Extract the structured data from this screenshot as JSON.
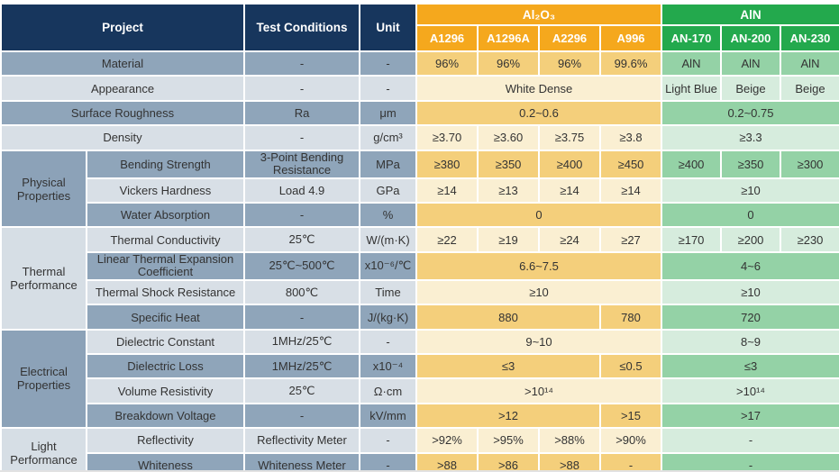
{
  "table": {
    "header": {
      "project": "Project",
      "test_conditions": "Test Conditions",
      "unit": "Unit",
      "groups": [
        {
          "label": "Al₂O₃",
          "columns": [
            "A1296",
            "A1296A",
            "A2296",
            "A996"
          ]
        },
        {
          "label": "AlN",
          "columns": [
            "AN-170",
            "AN-200",
            "AN-230"
          ]
        }
      ]
    },
    "sections": [
      {
        "group": null,
        "rows": [
          {
            "name": "Material",
            "test": "-",
            "unit": "-",
            "al2o3": [
              [
                "96%",
                1
              ],
              [
                "96%",
                1
              ],
              [
                "96%",
                1
              ],
              [
                "99.6%",
                1
              ]
            ],
            "aln": [
              [
                "AlN",
                1
              ],
              [
                "AlN",
                1
              ],
              [
                "AlN",
                1
              ]
            ]
          },
          {
            "name": "Appearance",
            "test": "-",
            "unit": "-",
            "al2o3": [
              [
                "White Dense",
                4
              ]
            ],
            "aln": [
              [
                "Light Blue",
                1
              ],
              [
                "Beige",
                1
              ],
              [
                "Beige",
                1
              ]
            ]
          },
          {
            "name": "Surface Roughness",
            "test": "Ra",
            "unit": "μm",
            "al2o3": [
              [
                "0.2~0.6",
                4
              ]
            ],
            "aln": [
              [
                "0.2~0.75",
                3
              ]
            ]
          },
          {
            "name": "Density",
            "test": "-",
            "unit": "g/cm³",
            "al2o3": [
              [
                "≥3.70",
                1
              ],
              [
                "≥3.60",
                1
              ],
              [
                "≥3.75",
                1
              ],
              [
                "≥3.8",
                1
              ]
            ],
            "aln": [
              [
                "≥3.3",
                3
              ]
            ]
          }
        ]
      },
      {
        "group": "Physical Properties",
        "rows": [
          {
            "name": "Bending Strength",
            "test": "3-Point Bending Resistance",
            "unit": "MPa",
            "al2o3": [
              [
                "≥380",
                1
              ],
              [
                "≥350",
                1
              ],
              [
                "≥400",
                1
              ],
              [
                "≥450",
                1
              ]
            ],
            "aln": [
              [
                "≥400",
                1
              ],
              [
                "≥350",
                1
              ],
              [
                "≥300",
                1
              ]
            ]
          },
          {
            "name": "Vickers Hardness",
            "test": "Load 4.9",
            "unit": "GPa",
            "al2o3": [
              [
                "≥14",
                1
              ],
              [
                "≥13",
                1
              ],
              [
                "≥14",
                1
              ],
              [
                "≥14",
                1
              ]
            ],
            "aln": [
              [
                "≥10",
                3
              ]
            ]
          },
          {
            "name": "Water Absorption",
            "test": "-",
            "unit": "%",
            "al2o3": [
              [
                "0",
                4
              ]
            ],
            "aln": [
              [
                "0",
                3
              ]
            ]
          }
        ]
      },
      {
        "group": "Thermal Performance",
        "rows": [
          {
            "name": "Thermal Conductivity",
            "test": "25℃",
            "unit": "W/(m·K)",
            "al2o3": [
              [
                "≥22",
                1
              ],
              [
                "≥19",
                1
              ],
              [
                "≥24",
                1
              ],
              [
                "≥27",
                1
              ]
            ],
            "aln": [
              [
                "≥170",
                1
              ],
              [
                "≥200",
                1
              ],
              [
                "≥230",
                1
              ]
            ]
          },
          {
            "name": "Linear Thermal Expansion Coefficient",
            "test": "25℃~500℃",
            "unit": "x10⁻⁶/℃",
            "al2o3": [
              [
                "6.6~7.5",
                4
              ]
            ],
            "aln": [
              [
                "4~6",
                3
              ]
            ]
          },
          {
            "name": "Thermal Shock Resistance",
            "test": "800℃",
            "unit": "Time",
            "al2o3": [
              [
                "≥10",
                4
              ]
            ],
            "aln": [
              [
                "≥10",
                3
              ]
            ]
          },
          {
            "name": "Specific Heat",
            "test": "-",
            "unit": "J/(kg·K)",
            "al2o3": [
              [
                "880",
                3
              ],
              [
                "780",
                1
              ]
            ],
            "aln": [
              [
                "720",
                3
              ]
            ]
          }
        ]
      },
      {
        "group": "Electrical Properties",
        "rows": [
          {
            "name": "Dielectric Constant",
            "test": "1MHz/25℃",
            "unit": "-",
            "al2o3": [
              [
                "9~10",
                4
              ]
            ],
            "aln": [
              [
                "8~9",
                3
              ]
            ]
          },
          {
            "name": "Dielectric Loss",
            "test": "1MHz/25℃",
            "unit": "x10⁻⁴",
            "al2o3": [
              [
                "≤3",
                3
              ],
              [
                "≤0.5",
                1
              ]
            ],
            "aln": [
              [
                "≤3",
                3
              ]
            ]
          },
          {
            "name": "Volume Resistivity",
            "test": "25℃",
            "unit": "Ω·cm",
            "al2o3": [
              [
                ">10¹⁴",
                4
              ]
            ],
            "aln": [
              [
                ">10¹⁴",
                3
              ]
            ]
          },
          {
            "name": "Breakdown Voltage",
            "test": "-",
            "unit": "kV/mm",
            "al2o3": [
              [
                ">12",
                3
              ],
              [
                ">15",
                1
              ]
            ],
            "aln": [
              [
                ">17",
                3
              ]
            ]
          }
        ]
      },
      {
        "group": "Light Performance",
        "rows": [
          {
            "name": "Reflectivity",
            "test": "Reflectivity Meter",
            "unit": "-",
            "al2o3": [
              [
                ">92%",
                1
              ],
              [
                ">95%",
                1
              ],
              [
                ">88%",
                1
              ],
              [
                ">90%",
                1
              ]
            ],
            "aln": [
              [
                "-",
                3
              ]
            ]
          },
          {
            "name": "Whiteness",
            "test": "Whiteness Meter",
            "unit": "-",
            "al2o3": [
              [
                ">88",
                1
              ],
              [
                ">86",
                1
              ],
              [
                ">88",
                1
              ],
              [
                "-",
                1
              ]
            ],
            "aln": [
              [
                "-",
                3
              ]
            ]
          }
        ]
      }
    ]
  },
  "colors": {
    "header_navy": "#17365D",
    "al2o3_header": "#F5A81D",
    "aln_header": "#23A94D",
    "al2o3_cell_dark": "#F4CF7B",
    "al2o3_cell_light": "#FAEFD2",
    "aln_cell_dark": "#94D2A6",
    "aln_cell_light": "#D6ECDD",
    "gray_cell_dark": "#8FA5BA",
    "gray_cell_light": "#D8DFE6"
  }
}
